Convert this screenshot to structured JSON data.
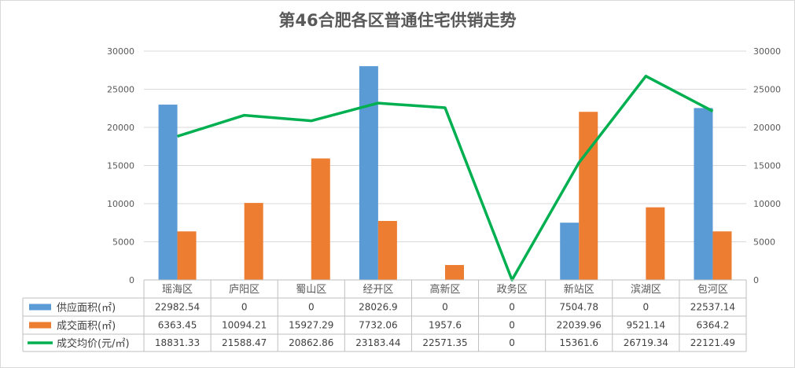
{
  "chart_data": {
    "type": "bar+line",
    "title": "第46合肥各区普通住宅供销走势",
    "categories": [
      "瑶海区",
      "庐阳区",
      "蜀山区",
      "经开区",
      "高新区",
      "政务区",
      "新站区",
      "滨湖区",
      "包河区"
    ],
    "series": [
      {
        "name": "供应面积(㎡)",
        "type": "bar",
        "axis": "left",
        "color": "#5b9bd5",
        "values": [
          22982.54,
          0,
          0,
          28026.9,
          0,
          0,
          7504.78,
          0,
          22537.14
        ],
        "labels": [
          "22982.54",
          "0",
          "0",
          "28026.9",
          "0",
          "0",
          "7504.78",
          "0",
          "22537.14"
        ]
      },
      {
        "name": "成交面积(㎡)",
        "type": "bar",
        "axis": "left",
        "color": "#ed7d31",
        "values": [
          6363.45,
          10094.21,
          15927.29,
          7732.06,
          1957.6,
          0,
          22039.96,
          9521.14,
          6364.2
        ],
        "labels": [
          "6363.45",
          "10094.21",
          "15927.29",
          "7732.06",
          "1957.6",
          "0",
          "22039.96",
          "9521.14",
          "6364.2"
        ]
      },
      {
        "name": "成交均价(元/㎡)",
        "type": "line",
        "axis": "right",
        "color": "#00b050",
        "values": [
          18831.33,
          21588.47,
          20862.86,
          23183.44,
          22571.35,
          0,
          15361.6,
          26719.34,
          22121.49
        ],
        "labels": [
          "18831.33",
          "21588.47",
          "20862.86",
          "23183.44",
          "22571.35",
          "0",
          "15361.6",
          "26719.34",
          "22121.49"
        ]
      }
    ],
    "ylim": [
      0,
      30000
    ],
    "y2lim": [
      0,
      30000
    ],
    "yticks": [
      "0",
      "5000",
      "10000",
      "15000",
      "20000",
      "25000",
      "30000"
    ],
    "y2ticks": [
      "0",
      "5000",
      "10000",
      "15000",
      "20000",
      "25000",
      "30000"
    ],
    "grid": true,
    "legend": "data-table"
  }
}
